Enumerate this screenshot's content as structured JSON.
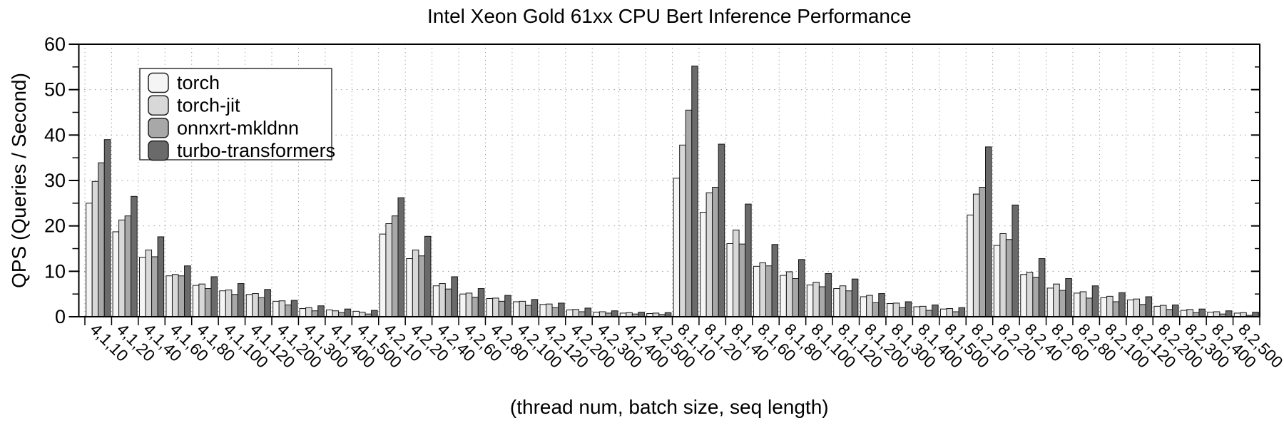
{
  "chart_data": {
    "type": "bar",
    "title": "Intel Xeon Gold 61xx CPU Bert Inference Performance",
    "xlabel": "(thread num, batch size, seq length)",
    "ylabel": "QPS (Queries / Second)",
    "ylim": [
      0,
      60
    ],
    "yticks": [
      0,
      10,
      20,
      30,
      40,
      50,
      60
    ],
    "grid": "dotted",
    "legend_position": "upper-left",
    "categories": [
      "4,1,10",
      "4,1,20",
      "4,1,40",
      "4,1,60",
      "4,1,80",
      "4,1,100",
      "4,1,120",
      "4,1,200",
      "4,1,300",
      "4,1,400",
      "4,1,500",
      "4,2,10",
      "4,2,20",
      "4,2,40",
      "4,2,60",
      "4,2,80",
      "4,2,100",
      "4,2,120",
      "4,2,200",
      "4,2,300",
      "4,2,400",
      "4,2,500",
      "8,1,10",
      "8,1,20",
      "8,1,40",
      "8,1,60",
      "8,1,80",
      "8,1,100",
      "8,1,120",
      "8,1,200",
      "8,1,300",
      "8,1,400",
      "8,1,500",
      "8,2,10",
      "8,2,20",
      "8,2,40",
      "8,2,60",
      "8,2,80",
      "8,2,100",
      "8,2,120",
      "8,2,200",
      "8,2,300",
      "8,2,400",
      "8,2,500"
    ],
    "series": [
      {
        "name": "torch",
        "color": "#f5f5f5",
        "values": [
          25.0,
          18.7,
          13.1,
          9.0,
          6.9,
          5.7,
          4.9,
          3.4,
          1.8,
          1.5,
          1.2,
          18.2,
          12.8,
          6.8,
          5.0,
          4.0,
          3.3,
          2.7,
          1.5,
          1.0,
          0.8,
          0.7,
          30.5,
          23.0,
          16.1,
          11.1,
          9.1,
          7.0,
          6.2,
          4.4,
          2.9,
          2.2,
          1.7,
          22.4,
          15.7,
          9.3,
          6.3,
          5.2,
          4.2,
          3.7,
          2.3,
          1.4,
          1.0,
          0.8
        ]
      },
      {
        "name": "torch-jit",
        "color": "#d8d8d8",
        "values": [
          29.8,
          21.3,
          14.7,
          9.3,
          7.2,
          5.9,
          5.1,
          3.5,
          2.0,
          1.3,
          1.0,
          20.5,
          14.7,
          7.3,
          5.2,
          4.1,
          3.4,
          2.8,
          1.6,
          1.1,
          0.9,
          0.8,
          37.8,
          27.3,
          19.1,
          11.9,
          9.9,
          7.6,
          6.8,
          4.7,
          3.0,
          2.3,
          1.8,
          27.0,
          18.3,
          9.8,
          7.2,
          5.5,
          4.5,
          3.9,
          2.5,
          1.6,
          1.1,
          0.9
        ]
      },
      {
        "name": "onnxrt-mkldnn",
        "color": "#a8a8a8",
        "values": [
          33.9,
          22.2,
          13.2,
          9.0,
          6.2,
          4.9,
          4.2,
          2.6,
          1.3,
          0.9,
          0.6,
          22.2,
          13.4,
          6.1,
          4.3,
          3.4,
          2.5,
          2.0,
          1.1,
          0.8,
          0.6,
          0.5,
          45.5,
          28.5,
          16.0,
          11.2,
          8.4,
          6.6,
          5.7,
          3.1,
          2.0,
          1.4,
          1.1,
          28.5,
          17.0,
          8.7,
          5.8,
          4.1,
          3.3,
          2.7,
          1.6,
          0.9,
          0.6,
          0.3
        ]
      },
      {
        "name": "turbo-transformers",
        "color": "#6a6a6a",
        "values": [
          39.0,
          26.5,
          17.6,
          11.2,
          8.8,
          7.3,
          6.0,
          3.6,
          2.4,
          1.7,
          1.4,
          26.2,
          17.7,
          8.8,
          6.2,
          4.7,
          3.8,
          3.0,
          1.9,
          1.3,
          1.0,
          0.9,
          55.2,
          38.0,
          24.8,
          15.9,
          12.6,
          9.5,
          8.3,
          5.1,
          3.3,
          2.6,
          2.0,
          37.4,
          24.6,
          12.8,
          8.4,
          6.8,
          5.3,
          4.4,
          2.6,
          1.7,
          1.3,
          1.0
        ]
      }
    ]
  },
  "colors": {
    "background": "#ffffff",
    "bar_edge": "#161616",
    "plot_border": "#000000",
    "grid": "#999999",
    "text": "#000000",
    "legend_border": "#333333"
  }
}
